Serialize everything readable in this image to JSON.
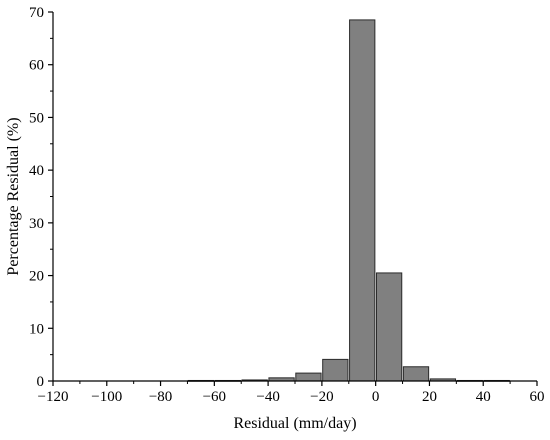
{
  "chart_data": {
    "type": "bar",
    "xlabel": "Residual (mm/day)",
    "ylabel": "Percentage Residual (%)",
    "xlim": [
      -120,
      60
    ],
    "ylim": [
      0,
      70
    ],
    "x_ticks": [
      -120,
      -100,
      -80,
      -60,
      -40,
      -20,
      0,
      20,
      40,
      60
    ],
    "x_tick_labels": [
      "−120",
      "−100",
      "−80",
      "−60",
      "−40",
      "−20",
      "0",
      "20",
      "40",
      "60"
    ],
    "y_ticks": [
      0,
      10,
      20,
      30,
      40,
      50,
      60,
      70
    ],
    "y_tick_labels": [
      "0",
      "10",
      "20",
      "30",
      "40",
      "50",
      "60",
      "70"
    ],
    "bin_width": 10,
    "bin_centers": [
      -65,
      -55,
      -45,
      -35,
      -25,
      -15,
      -5,
      5,
      15,
      25,
      35,
      45
    ],
    "values": [
      0.1,
      0.1,
      0.2,
      0.6,
      1.5,
      4.1,
      68.5,
      20.5,
      2.7,
      0.4,
      0.1,
      0.1
    ],
    "grid": false,
    "legend": "none",
    "bar_color": "#808080",
    "bar_edge_color": "#2a2a2a"
  }
}
